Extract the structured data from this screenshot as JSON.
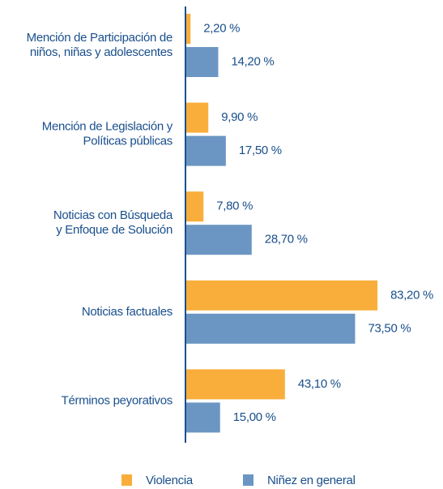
{
  "chart_data": {
    "type": "bar",
    "orientation": "horizontal",
    "categories": [
      "Mención de Participación de\nniños, niñas y adolescentes",
      "Mención de Legislación y\nPolíticas públicas",
      "Noticias con Búsqueda\ny Enfoque de Solución",
      "Noticias factuales",
      "Términos peyorativos"
    ],
    "series": [
      {
        "name": "Violencia",
        "color": "#f9ae3b",
        "values": [
          2.2,
          9.9,
          7.8,
          83.2,
          43.1
        ],
        "value_labels": [
          "2,20 %",
          "9,90 %",
          "7,80 %",
          "83,20 %",
          "43,10 %"
        ]
      },
      {
        "name": "Niñez en general",
        "color": "#6b96c3",
        "values": [
          14.2,
          17.5,
          28.7,
          73.5,
          15.0
        ],
        "value_labels": [
          "14,20 %",
          "17,50 %",
          "28,70 %",
          "73,50 %",
          "15,00 %"
        ]
      }
    ],
    "xlim": [
      0,
      100
    ],
    "legend": "bottom"
  }
}
